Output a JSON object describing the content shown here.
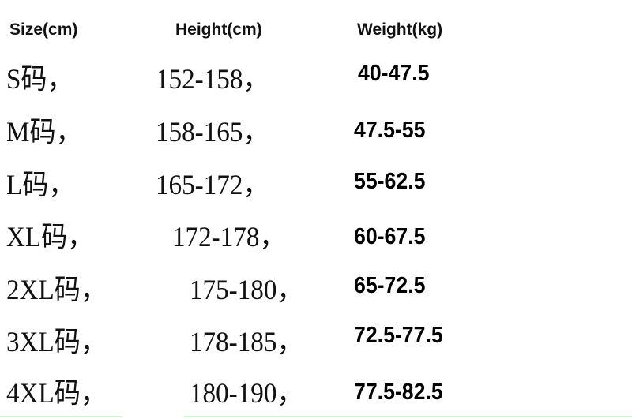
{
  "headers": {
    "size": "Size(cm)",
    "height": "Height(cm)",
    "weight": "Weight(kg)"
  },
  "rows": [
    {
      "size": "S码，",
      "height": "152-158，",
      "weight": "40-47.5"
    },
    {
      "size": "M码，",
      "height": "158-165，",
      "weight": "47.5-55"
    },
    {
      "size": "L码，",
      "height": "165-172，",
      "weight": "55-62.5"
    },
    {
      "size": "XL码，",
      "height": "172-178，",
      "weight": "60-67.5"
    },
    {
      "size": "2XL码，",
      "height": "175-180，",
      "weight": "65-72.5"
    },
    {
      "size": "3XL码，",
      "height": "178-185，",
      "weight": "72.5-77.5"
    },
    {
      "size": "4XL码，",
      "height": "180-190，",
      "weight": "77.5-82.5"
    }
  ],
  "colors": {
    "rule": "#d8efd8"
  }
}
